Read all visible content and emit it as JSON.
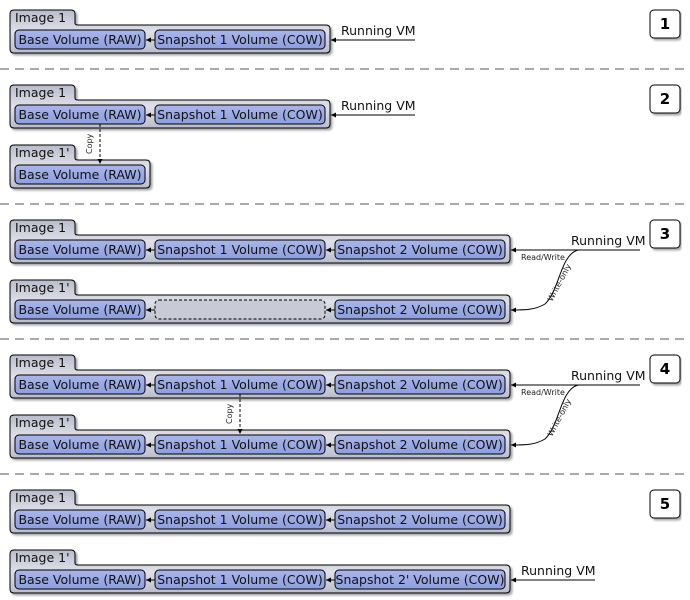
{
  "colors": {
    "volume_fill": "#8d9ede",
    "volume_fill_light": "#aab6ea",
    "image_fill": "#b9bccb",
    "image_fill_light": "#dfe0e8",
    "separator": "#555555"
  },
  "steps": [
    {
      "number": "1",
      "vm": "Running VM",
      "images": [
        {
          "label": "Image 1",
          "volumes": [
            "Base Volume (RAW)",
            "Snapshot 1 Volume (COW)"
          ]
        }
      ]
    },
    {
      "number": "2",
      "vm": "Running VM",
      "copy_label": "Copy",
      "images": [
        {
          "label": "Image 1",
          "volumes": [
            "Base Volume (RAW)",
            "Snapshot 1 Volume (COW)"
          ]
        },
        {
          "label": "Image 1'",
          "volumes": [
            "Base Volume (RAW)"
          ]
        }
      ]
    },
    {
      "number": "3",
      "vm": "Running VM",
      "read_write": "Read/Write",
      "write_only": "Write-only",
      "images": [
        {
          "label": "Image 1",
          "volumes": [
            "Base Volume (RAW)",
            "Snapshot 1 Volume (COW)",
            "Snapshot 2 Volume (COW)"
          ]
        },
        {
          "label": "Image 1'",
          "volumes": [
            "Base Volume (RAW)",
            null,
            "Snapshot 2 Volume (COW)"
          ]
        }
      ]
    },
    {
      "number": "4",
      "vm": "Running VM",
      "copy_label": "Copy",
      "read_write": "Read/Write",
      "write_only": "Write-only",
      "images": [
        {
          "label": "Image 1",
          "volumes": [
            "Base Volume (RAW)",
            "Snapshot 1 Volume (COW)",
            "Snapshot 2 Volume (COW)"
          ]
        },
        {
          "label": "Image 1'",
          "volumes": [
            "Base Volume (RAW)",
            "Snapshot 1 Volume (COW)",
            "Snapshot 2 Volume (COW)"
          ]
        }
      ]
    },
    {
      "number": "5",
      "vm": "Running VM",
      "images": [
        {
          "label": "Image 1",
          "volumes": [
            "Base Volume (RAW)",
            "Snapshot 1 Volume (COW)",
            "Snapshot 2 Volume (COW)"
          ]
        },
        {
          "label": "Image 1'",
          "volumes": [
            "Base Volume (RAW)",
            "Snapshot 1 Volume (COW)",
            "Snapshot 2' Volume (COW)"
          ]
        }
      ]
    }
  ]
}
